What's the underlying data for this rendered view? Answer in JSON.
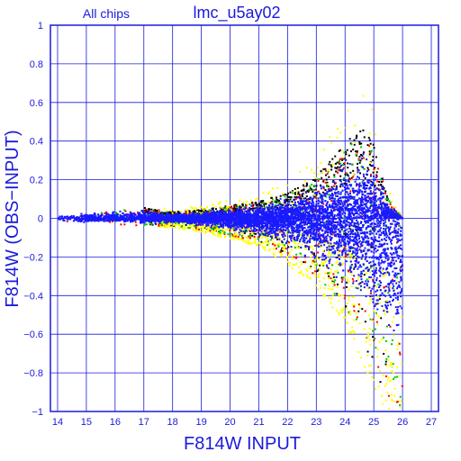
{
  "chart_data": {
    "type": "scatter",
    "title": "lmc_u5ay02",
    "subtitle": "All chips",
    "xlabel": "F814W INPUT",
    "ylabel": "F814W (OBS−INPUT)",
    "xlim": [
      13.75,
      27.25
    ],
    "ylim": [
      -1,
      1
    ],
    "xticks": [
      "14",
      "15",
      "16",
      "17",
      "18",
      "19",
      "20",
      "21",
      "22",
      "23",
      "24",
      "25",
      "26",
      "27"
    ],
    "yticks": [
      "1",
      "0.8",
      "0.6",
      "0.4",
      "0.2",
      "0",
      "−0.2",
      "−0.4",
      "−0.6",
      "−0.8",
      "−1"
    ],
    "grid": true,
    "colors": {
      "axis": "#1a1adc",
      "points_main": "#1a1aff",
      "points_black": "#000000",
      "points_yellow": "#ffff00",
      "points_red": "#ff0000",
      "points_green": "#00c800"
    },
    "series_envelope": {
      "description_points": "residual scatter vs input magnitude",
      "x_center": [
        14.0,
        15.0,
        16.0,
        17.0,
        18.0,
        19.0,
        20.0,
        21.0,
        22.0,
        23.0,
        24.0,
        24.5,
        25.0,
        25.5,
        26.0
      ],
      "y_upper": [
        0.02,
        0.03,
        0.04,
        0.05,
        0.03,
        0.04,
        0.06,
        0.08,
        0.12,
        0.2,
        0.35,
        0.45,
        0.35,
        0.1,
        0.0
      ],
      "y_lower": [
        -0.02,
        -0.03,
        -0.03,
        -0.04,
        -0.04,
        -0.06,
        -0.09,
        -0.12,
        -0.2,
        -0.3,
        -0.45,
        -0.6,
        -0.8,
        -0.95,
        -1.0
      ]
    }
  }
}
